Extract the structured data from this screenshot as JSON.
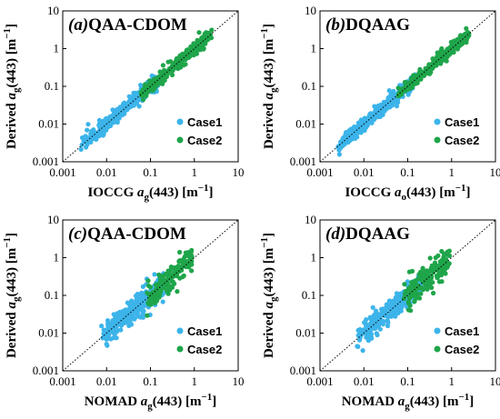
{
  "colors": {
    "case1": "#3cb4ea",
    "case2": "#1fa54a"
  },
  "chart_data": [
    {
      "type": "scatter",
      "panel_letter": "(a)",
      "title": "QAA-CDOM",
      "xlabel": {
        "pre": "IOCCG ",
        "sym": "a",
        "sub": "g",
        "post": "(443) [m",
        "sup": "−1",
        "end": "]"
      },
      "ylabel": {
        "pre": "Derived ",
        "sym": "a",
        "sub": "g",
        "post": "(443) [m",
        "sup": "−1",
        "end": "]"
      },
      "log_scale": true,
      "xlim": [
        0.001,
        10
      ],
      "ylim": [
        0.001,
        10
      ],
      "ticks": [
        "0.001",
        "0.01",
        "0.1",
        "1",
        "10"
      ],
      "one_to_one_line": true,
      "legend_placement": "bottom-right",
      "series": [
        {
          "name": "Case1",
          "color": "#3cb4ea",
          "cluster": {
            "xmin": 0.0025,
            "xmax": 0.15,
            "log_offset_sd": 0.08,
            "count": 420,
            "seed": 11
          }
        },
        {
          "name": "Case2",
          "color": "#1fa54a",
          "cluster": {
            "xmin": 0.06,
            "xmax": 2.5,
            "log_offset_sd": 0.07,
            "count": 330,
            "seed": 23
          }
        }
      ]
    },
    {
      "type": "scatter",
      "panel_letter": "(b)",
      "title": "DQAAG",
      "xlabel": {
        "pre": "IOCCG ",
        "sym": "a",
        "sub": "o",
        "post": "(443) [m",
        "sup": "−1",
        "end": "]"
      },
      "ylabel": {
        "pre": "Derived ",
        "sym": "a",
        "sub": "g",
        "post": "(443) [m",
        "sup": "−1",
        "end": "]"
      },
      "log_scale": true,
      "xlim": [
        0.001,
        10
      ],
      "ylim": [
        0.001,
        10
      ],
      "ticks": [
        "0.001",
        "0.01",
        "0.1",
        "1",
        "10"
      ],
      "one_to_one_line": true,
      "legend_placement": "bottom-right",
      "series": [
        {
          "name": "Case1",
          "color": "#3cb4ea",
          "cluster": {
            "xmin": 0.0025,
            "xmax": 0.15,
            "log_offset_sd": 0.07,
            "count": 420,
            "seed": 31
          }
        },
        {
          "name": "Case2",
          "color": "#1fa54a",
          "cluster": {
            "xmin": 0.06,
            "xmax": 2.5,
            "log_offset_sd": 0.06,
            "count": 330,
            "seed": 47
          }
        }
      ]
    },
    {
      "type": "scatter",
      "panel_letter": "(c)",
      "title": "QAA-CDOM",
      "xlabel": {
        "pre": "NOMAD ",
        "sym": "a",
        "sub": "g",
        "post": "(443) [m",
        "sup": "−1",
        "end": "]"
      },
      "ylabel": {
        "pre": "Derived ",
        "sym": "a",
        "sub": "g",
        "post": "(443) [m",
        "sup": "−1",
        "end": "]"
      },
      "log_scale": true,
      "xlim": [
        0.001,
        10
      ],
      "ylim": [
        0.001,
        10
      ],
      "ticks": [
        "0.001",
        "0.01",
        "0.1",
        "1",
        "10"
      ],
      "one_to_one_line": true,
      "legend_placement": "bottom-right",
      "series": [
        {
          "name": "Case1",
          "color": "#3cb4ea",
          "cluster": {
            "xmin": 0.007,
            "xmax": 0.2,
            "log_offset_sd": 0.14,
            "count": 260,
            "seed": 53
          }
        },
        {
          "name": "Case2",
          "color": "#1fa54a",
          "cluster": {
            "xmin": 0.08,
            "xmax": 0.9,
            "log_offset_sd": 0.16,
            "count": 150,
            "seed": 61
          }
        }
      ]
    },
    {
      "type": "scatter",
      "panel_letter": "(d)",
      "title": "DQAAG",
      "xlabel": {
        "pre": "NOMAD ",
        "sym": "a",
        "sub": "g",
        "post": "(443) [m",
        "sup": "−1",
        "end": "]"
      },
      "ylabel": {
        "pre": "Derived ",
        "sym": "a",
        "sub": "g",
        "post": "(443) [m",
        "sup": "−1",
        "end": "]"
      },
      "log_scale": true,
      "xlim": [
        0.001,
        10
      ],
      "ylim": [
        0.001,
        10
      ],
      "ticks": [
        "0.001",
        "0.01",
        "0.1",
        "1",
        "10"
      ],
      "one_to_one_line": true,
      "legend_placement": "bottom-right",
      "series": [
        {
          "name": "Case1",
          "color": "#3cb4ea",
          "cluster": {
            "xmin": 0.007,
            "xmax": 0.2,
            "log_offset_sd": 0.13,
            "count": 260,
            "seed": 71
          }
        },
        {
          "name": "Case2",
          "color": "#1fa54a",
          "cluster": {
            "xmin": 0.08,
            "xmax": 0.9,
            "log_offset_sd": 0.15,
            "count": 150,
            "seed": 83
          }
        }
      ]
    }
  ]
}
